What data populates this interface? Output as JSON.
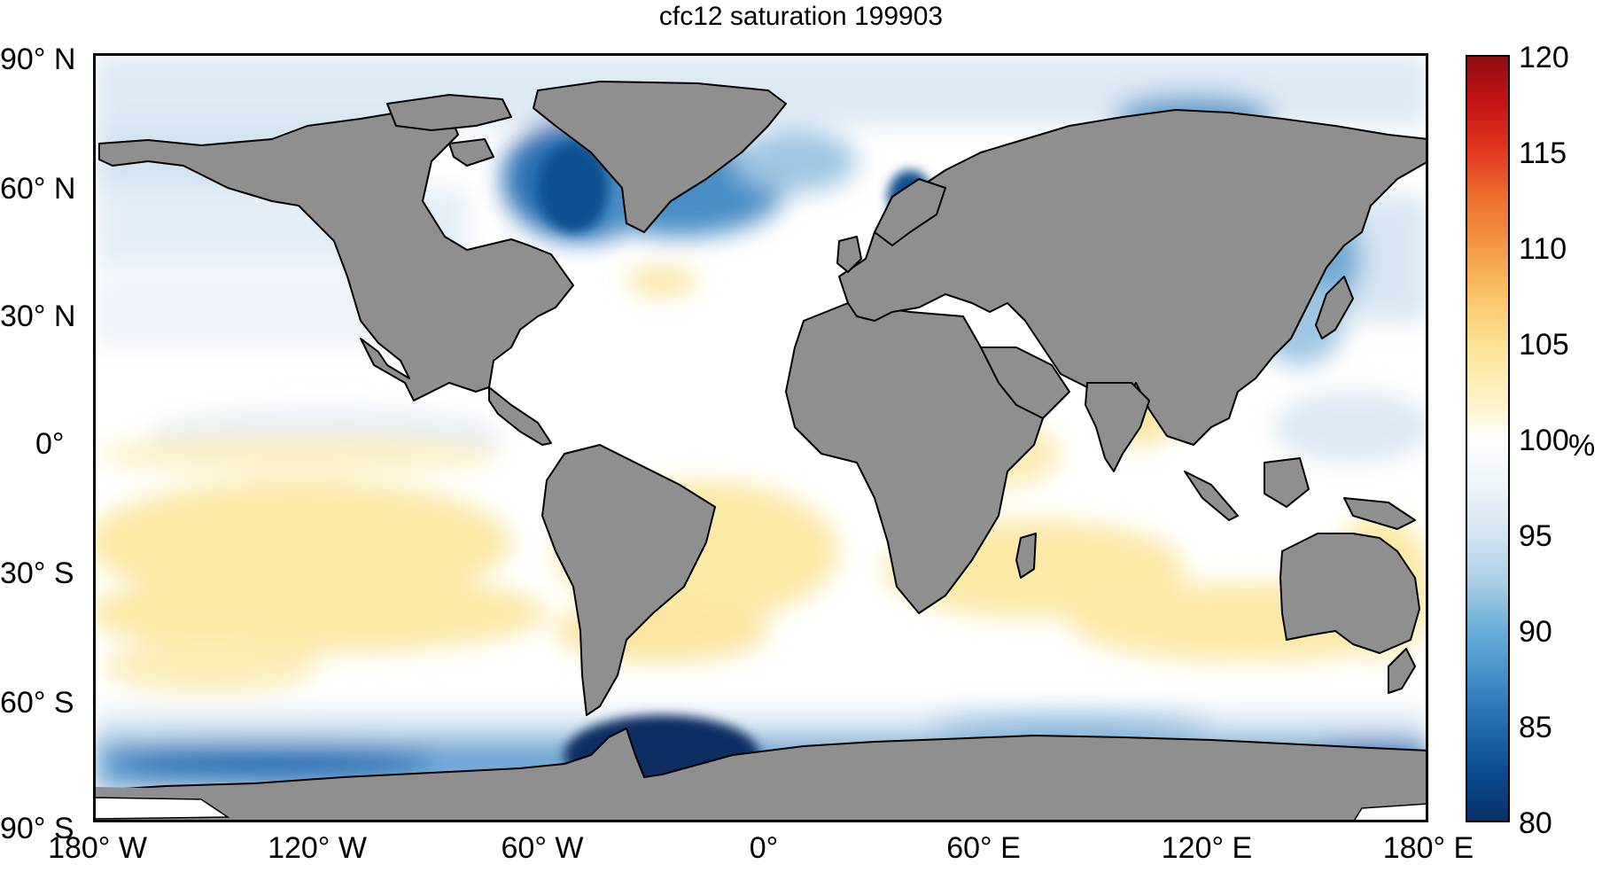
{
  "title": "cfc12 saturation 199903",
  "colors": {
    "land": "#8f8f8f",
    "ocean_background": "#ffffff",
    "coastline": "#000000",
    "deep_blue": "#0b3d7a",
    "mid_blue": "#3f86c2",
    "light_blue": "#cfe2f0",
    "pale_yellow": "#fbe9a6",
    "orange": "#f6a844"
  },
  "axes": {
    "lat_ticks": [
      "90° N",
      "60° N",
      "30° N",
      "0°",
      "30° S",
      "60° S",
      "90° S"
    ],
    "lon_ticks": [
      "180° W",
      "120° W",
      "60° W",
      "0°",
      "60° E",
      "120° E",
      "180° E"
    ],
    "lat_values": [
      90,
      60,
      30,
      0,
      -30,
      -60,
      -90
    ],
    "lon_values": [
      -180,
      -120,
      -60,
      0,
      60,
      120,
      180
    ]
  },
  "colorbar": {
    "min": 80,
    "max": 120,
    "ticks": [
      "120",
      "115",
      "110",
      "105",
      "100",
      "95",
      "90",
      "85",
      "80"
    ],
    "tick_values": [
      120,
      115,
      110,
      105,
      100,
      95,
      90,
      85,
      80
    ],
    "unit": "%",
    "colormap": "blue-white-red diverging"
  },
  "map_data": {
    "projection": "equirectangular",
    "variable": "cfc12 saturation",
    "date": "199903",
    "features": [
      "deep undersaturation (about 80-85%) in the Weddell Sea and Labrador Sea",
      "undersaturation along the Antarctic coast and in high northern latitudes",
      "slight supersaturation (about 101-104%) across subtropical Southern Hemisphere oceans"
    ]
  }
}
